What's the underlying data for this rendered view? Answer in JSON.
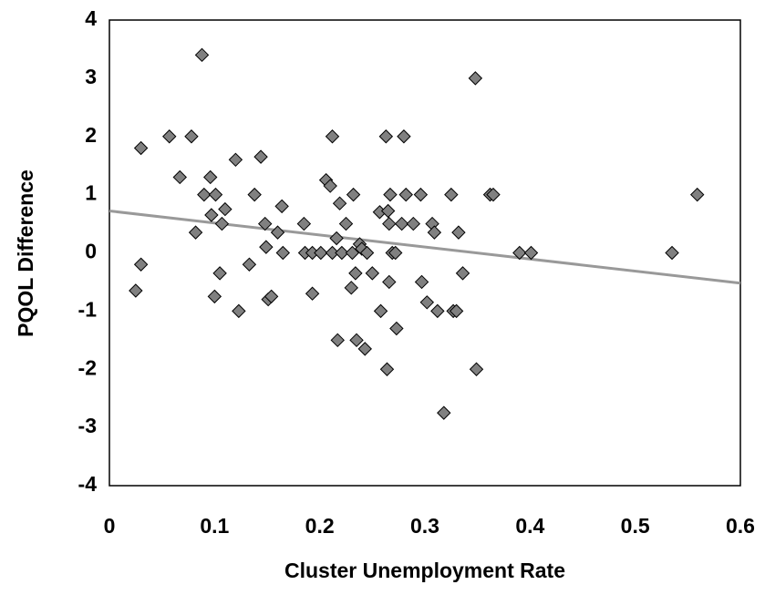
{
  "chart_data": {
    "type": "scatter",
    "xlabel": "Cluster Unemployment Rate",
    "ylabel": "PQOL Difference",
    "xlim": [
      0,
      0.6
    ],
    "ylim": [
      -4,
      4
    ],
    "xticks": [
      0,
      0.1,
      0.2,
      0.3,
      0.4,
      0.5,
      0.6
    ],
    "yticks": [
      -4,
      -3,
      -2,
      -1,
      0,
      1,
      2,
      3,
      4
    ],
    "grid": false,
    "series": [
      {
        "color": "#808080",
        "x": [
          0.03,
          0.025,
          0.03,
          0.057,
          0.067,
          0.078,
          0.088,
          0.082,
          0.09,
          0.096,
          0.097,
          0.101,
          0.1,
          0.105,
          0.107,
          0.11,
          0.12,
          0.123,
          0.133,
          0.138,
          0.144,
          0.148,
          0.149,
          0.151,
          0.154,
          0.16,
          0.164,
          0.165,
          0.185,
          0.186,
          0.193,
          0.193,
          0.201,
          0.206,
          0.21,
          0.212,
          0.212,
          0.216,
          0.217,
          0.219,
          0.221,
          0.225,
          0.23,
          0.231,
          0.232,
          0.234,
          0.235,
          0.238,
          0.24,
          0.243,
          0.245,
          0.25,
          0.257,
          0.258,
          0.263,
          0.264,
          0.265,
          0.266,
          0.266,
          0.267,
          0.269,
          0.272,
          0.273,
          0.278,
          0.28,
          0.282,
          0.289,
          0.296,
          0.297,
          0.302,
          0.307,
          0.309,
          0.312,
          0.318,
          0.325,
          0.327,
          0.33,
          0.332,
          0.336,
          0.348,
          0.349,
          0.362,
          0.365,
          0.39,
          0.401,
          0.535,
          0.559
        ],
        "values": [
          1.8,
          -0.65,
          -0.2,
          2.0,
          1.3,
          2.0,
          3.4,
          0.35,
          1.0,
          1.3,
          0.65,
          1.0,
          -0.75,
          -0.35,
          0.5,
          0.75,
          1.6,
          -1.0,
          -0.2,
          1.0,
          1.65,
          0.5,
          0.1,
          -0.8,
          -0.75,
          0.35,
          0.8,
          0,
          0.5,
          0,
          0,
          -0.7,
          0,
          1.25,
          1.15,
          2.0,
          0,
          0.25,
          -1.5,
          0.85,
          0,
          0.5,
          -0.6,
          0,
          1.0,
          -0.35,
          -1.5,
          0.15,
          0.07,
          -1.65,
          0,
          -0.35,
          0.7,
          -1.0,
          2.0,
          -2.0,
          0.72,
          0.5,
          -0.5,
          1.0,
          0,
          0,
          -1.3,
          0.5,
          2.0,
          1.0,
          0.5,
          1.0,
          -0.5,
          -0.85,
          0.5,
          0.35,
          -1.0,
          -2.75,
          1.0,
          -1.0,
          -1.0,
          0.35,
          -0.35,
          3.0,
          -2.0,
          1.0,
          1.0,
          0,
          0,
          0,
          1.0
        ]
      }
    ],
    "trendline": {
      "color": "#999999",
      "x": [
        0,
        0.6
      ],
      "values": [
        0.72,
        -0.52
      ]
    }
  }
}
